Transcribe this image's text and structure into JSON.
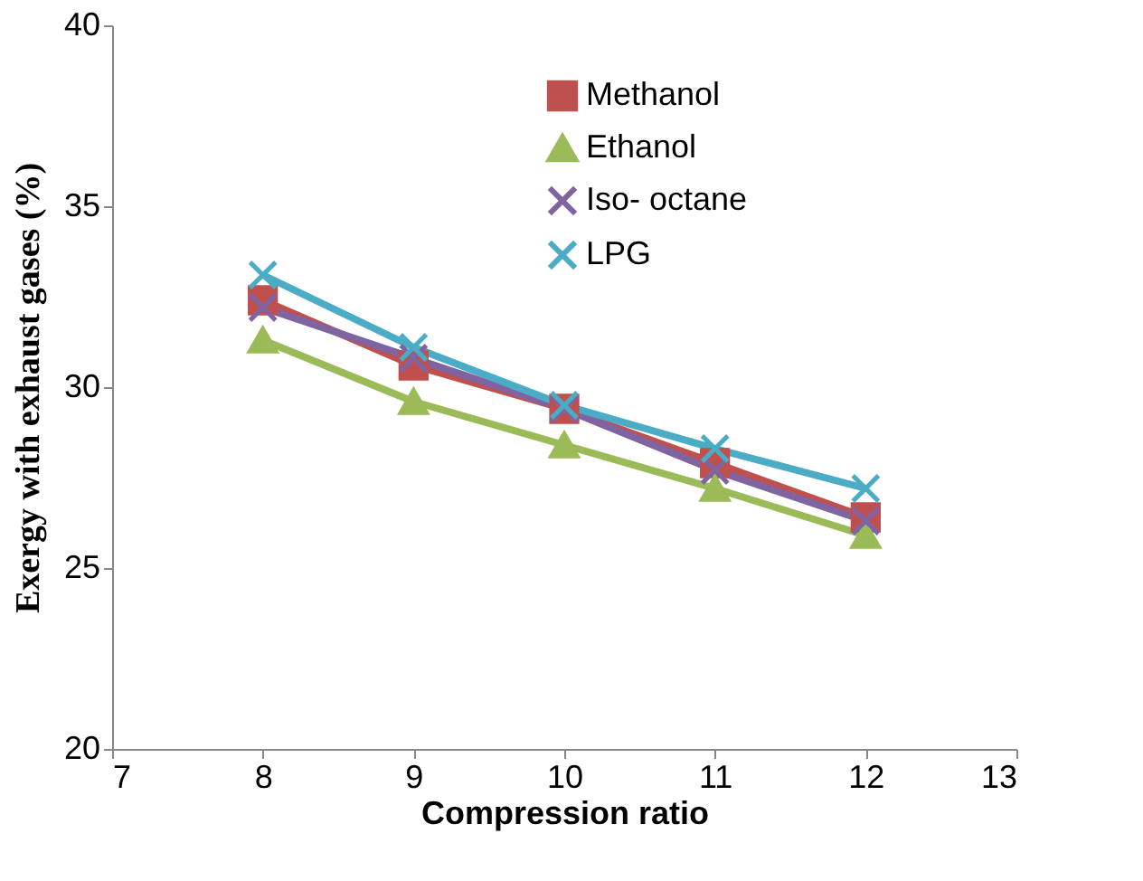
{
  "chart_data": {
    "type": "line",
    "xlabel": "Compression ratio",
    "ylabel": "Exergy with exhaust gases (%)",
    "x": [
      8,
      9,
      10,
      11,
      12
    ],
    "series": [
      {
        "name": "Methanol",
        "color": "#c0504d",
        "marker": "square",
        "values": [
          32.4,
          30.6,
          29.4,
          27.9,
          26.4
        ]
      },
      {
        "name": "Ethanol",
        "color": "#9bbb59",
        "marker": "triangle",
        "values": [
          31.3,
          29.6,
          28.4,
          27.2,
          25.9
        ]
      },
      {
        "name": "Iso- octane",
        "color": "#8064a2",
        "marker": "cross",
        "values": [
          32.2,
          30.8,
          29.4,
          27.7,
          26.3
        ]
      },
      {
        "name": "LPG",
        "color": "#4bacc6",
        "marker": "cross",
        "values": [
          33.1,
          31.1,
          29.5,
          28.3,
          27.2
        ]
      }
    ],
    "xlim": [
      7,
      13
    ],
    "xticks": [
      7,
      8,
      9,
      10,
      11,
      12,
      13
    ],
    "ylim": [
      20,
      40
    ],
    "yticks": [
      20,
      25,
      30,
      35,
      40
    ],
    "grid": false,
    "legend": "top right",
    "line_style": "solid"
  }
}
